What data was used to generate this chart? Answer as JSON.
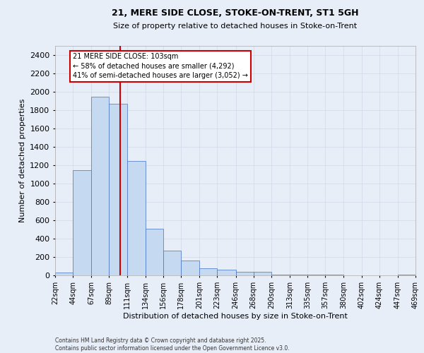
{
  "title1": "21, MERE SIDE CLOSE, STOKE-ON-TRENT, ST1 5GH",
  "title2": "Size of property relative to detached houses in Stoke-on-Trent",
  "xlabel": "Distribution of detached houses by size in Stoke-on-Trent",
  "ylabel": "Number of detached properties",
  "annotation_line1": "21 MERE SIDE CLOSE: 103sqm",
  "annotation_line2": "← 58% of detached houses are smaller (4,292)",
  "annotation_line3": "41% of semi-detached houses are larger (3,052) →",
  "footer1": "Contains HM Land Registry data © Crown copyright and database right 2025.",
  "footer2": "Contains public sector information licensed under the Open Government Licence v3.0.",
  "property_size": 103,
  "bar_edges": [
    22,
    44,
    67,
    89,
    111,
    134,
    156,
    178,
    201,
    223,
    246,
    268,
    290,
    313,
    335,
    357,
    380,
    402,
    424,
    447,
    469
  ],
  "bar_heights": [
    30,
    1150,
    1950,
    1870,
    1250,
    510,
    270,
    160,
    80,
    60,
    40,
    40,
    10,
    10,
    5,
    5,
    2,
    2,
    1,
    5
  ],
  "bar_color": "#c5d9f1",
  "bar_edge_color": "#4472c4",
  "vline_color": "#cc0000",
  "annotation_box_color": "#cc0000",
  "grid_color": "#d0d8e8",
  "background_color": "#e8eef8",
  "ylim": [
    0,
    2500
  ],
  "yticks": [
    0,
    200,
    400,
    600,
    800,
    1000,
    1200,
    1400,
    1600,
    1800,
    2000,
    2200,
    2400
  ]
}
